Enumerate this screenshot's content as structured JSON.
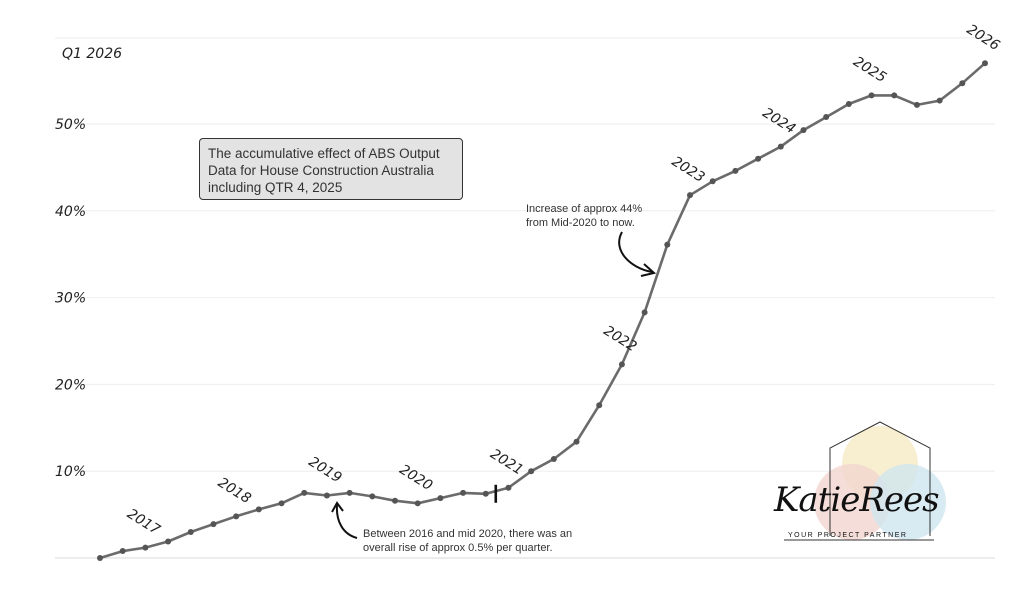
{
  "chart_data": {
    "type": "line",
    "title": "",
    "xlabel": "",
    "ylabel": "",
    "ylim": [
      0,
      57
    ],
    "y_ticks": [
      10,
      20,
      30,
      40,
      50
    ],
    "y_tick_labels": [
      "10%",
      "20%",
      "30%",
      "40%",
      "50%"
    ],
    "top_label": "Q1 2026",
    "grid": true,
    "series": [
      {
        "values": [
          0,
          0.8,
          1.2,
          1.9,
          3.0,
          3.9,
          4.8,
          5.6,
          6.3,
          7.5,
          7.2,
          7.5,
          7.1,
          6.6,
          6.3,
          6.9,
          7.5,
          7.4,
          8.1,
          10.0,
          11.4,
          13.4,
          17.6,
          22.3,
          28.3,
          36.1,
          41.8,
          43.4,
          44.6,
          46.0,
          47.4,
          49.3,
          50.8,
          52.3,
          53.3,
          53.3,
          52.2,
          52.7,
          54.7,
          57.0
        ],
        "color": "#6b6b6b"
      }
    ],
    "year_labels": [
      {
        "label": "2017",
        "index": 2
      },
      {
        "label": "2018",
        "index": 6
      },
      {
        "label": "2019",
        "index": 10
      },
      {
        "label": "2020",
        "index": 14
      },
      {
        "label": "2021",
        "index": 18
      },
      {
        "label": "2022",
        "index": 23
      },
      {
        "label": "2023",
        "index": 26
      },
      {
        "label": "2024",
        "index": 30
      },
      {
        "label": "2025",
        "index": 34
      },
      {
        "label": "2026",
        "index": 39
      }
    ],
    "marker_index": 17
  },
  "info_box": {
    "text": "The accumulative effect of ABS Output Data for House Construction Australia including QTR 4, 2025"
  },
  "annotations": {
    "increase": [
      "Increase of approx 44%",
      "from Mid-2020 to now."
    ],
    "between": [
      "Between 2016 and mid 2020, there was an",
      "overall rise of approx 0.5% per quarter."
    ]
  },
  "logo": {
    "name": "KatieRees",
    "tagline": "YOUR PROJECT PARTNER",
    "colors": [
      "#f7ecc8",
      "#f3d6cf",
      "#cfe6ef"
    ]
  }
}
